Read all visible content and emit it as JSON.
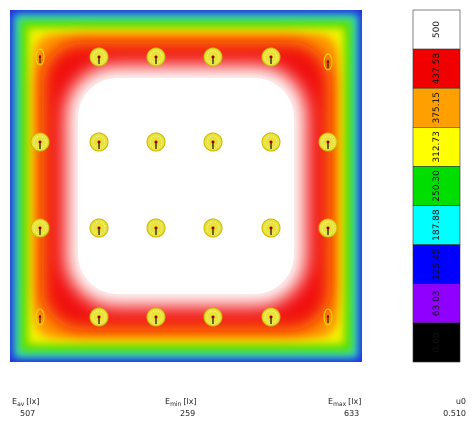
{
  "legend": {
    "labels": [
      "500",
      "437.58",
      "375.15",
      "312.73",
      "250.30",
      "187.88",
      "125.45",
      "63.03",
      "0.60"
    ]
  },
  "statistics": [
    {
      "symbol": "E",
      "subscript": "av",
      "unit": "[lx]",
      "value": "507"
    },
    {
      "symbol": "E",
      "subscript": "min",
      "unit": "[lx]",
      "value": "259"
    },
    {
      "symbol": "E",
      "subscript": "max",
      "unit": "[lx]",
      "value": "633"
    },
    {
      "symbol": "u0",
      "value": "0.510"
    }
  ]
}
